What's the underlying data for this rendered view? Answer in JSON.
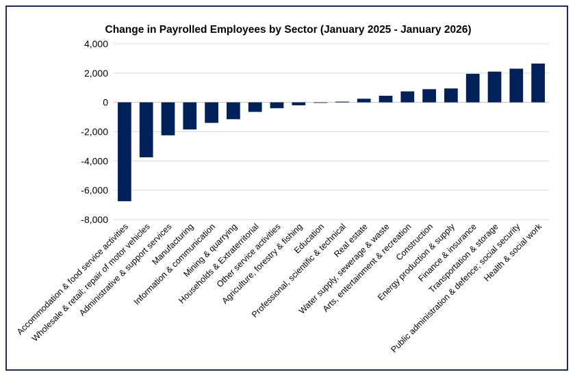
{
  "chart_data": {
    "type": "bar",
    "title": "Change in Payrolled Employees by Sector (January 2025 - January 2026)",
    "xlabel": "",
    "ylabel": "",
    "ylim": [
      -8000,
      4000
    ],
    "yticks": [
      4000,
      2000,
      0,
      -2000,
      -4000,
      -6000,
      -8000
    ],
    "ytick_labels": [
      "4,000",
      "2,000",
      "0",
      "-2,000",
      "-4,000",
      "-6,000",
      "-8,000"
    ],
    "grid": true,
    "legend": "none",
    "bar_color": "#00215a",
    "categories": [
      "Accommodation & food service activities",
      "Wholesale & retail; repair of motor vehicles",
      "Administrative & support services",
      "Manufacturing",
      "Information & communication",
      "Mining & quarrying",
      "Households & Extraterritorial",
      "Other service activities",
      "Agriculture, forestry & fishing",
      "Education",
      "Professional, scientific & technical",
      "Real estate",
      "Water supply, sewerage & waste",
      "Arts, entertainment & recreation",
      "Construction",
      "Energy production & supply",
      "Finance & insurance",
      "Transportation & storage",
      "Public administration & defence; social security",
      "Health & social work"
    ],
    "values": [
      -6750,
      -3750,
      -2250,
      -1850,
      -1400,
      -1150,
      -650,
      -400,
      -200,
      0,
      50,
      250,
      450,
      750,
      900,
      950,
      1950,
      2100,
      2300,
      2650
    ]
  }
}
